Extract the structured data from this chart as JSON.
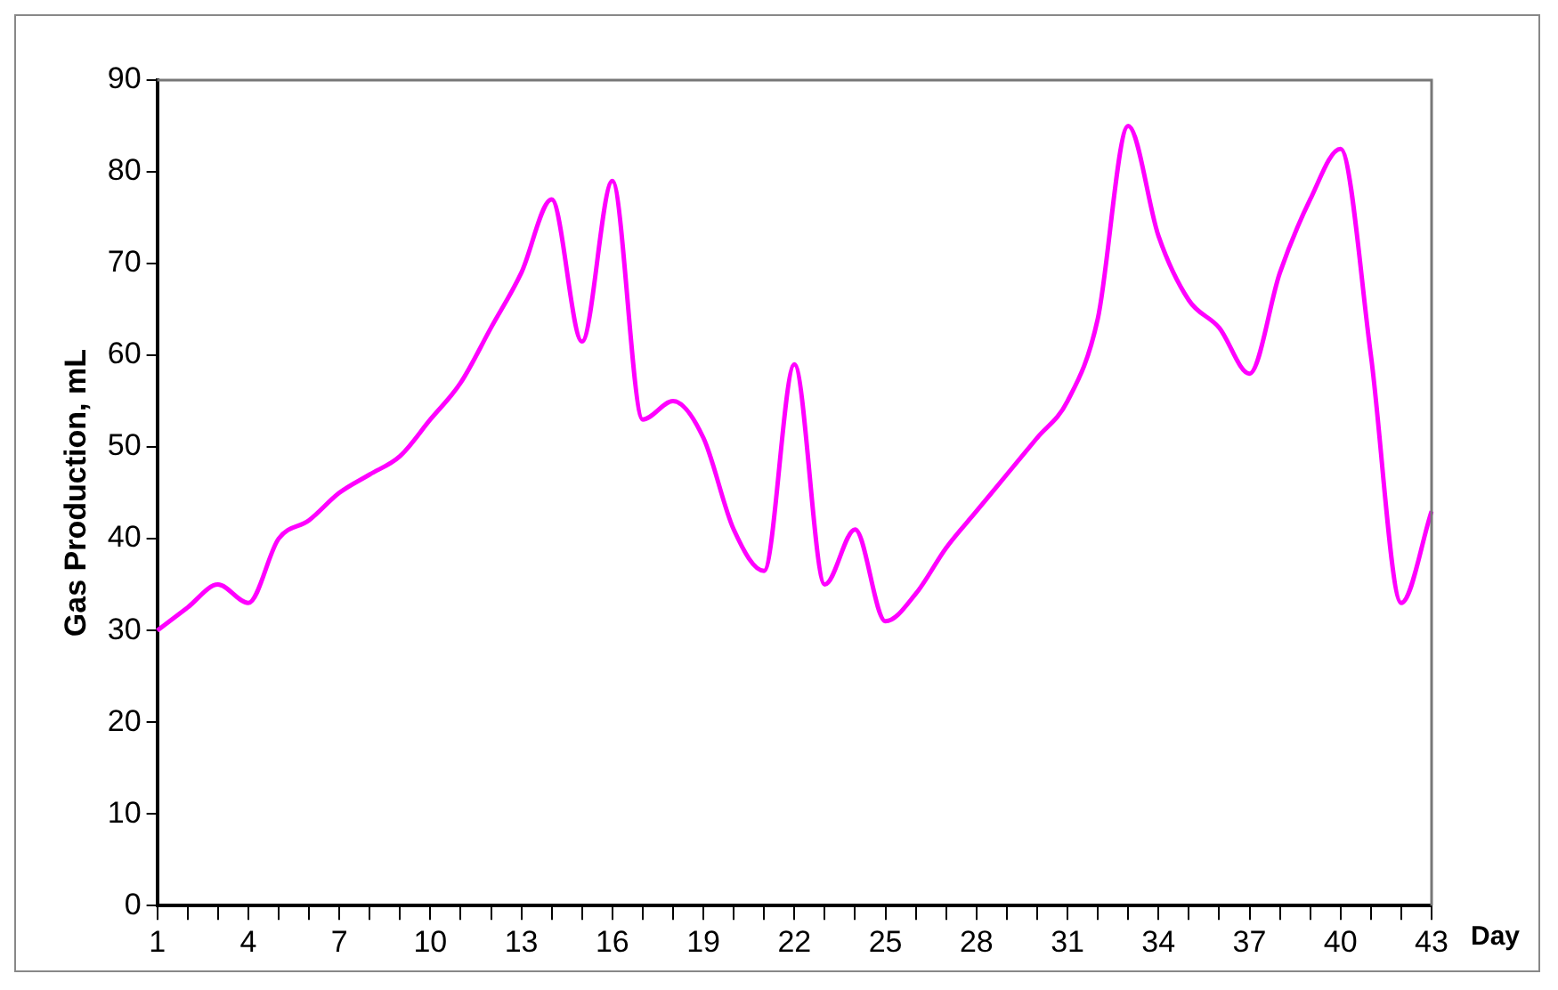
{
  "chart_data": {
    "type": "line",
    "xlabel": "Day",
    "ylabel": "Gas Production, mL",
    "categories": [
      "1",
      null,
      null,
      "4",
      null,
      null,
      "7",
      null,
      null,
      "10",
      null,
      null,
      "13",
      null,
      null,
      "16",
      null,
      null,
      "19",
      null,
      null,
      "22",
      null,
      null,
      "25",
      null,
      null,
      "28",
      null,
      null,
      "31",
      null,
      null,
      "34",
      null,
      null,
      "37",
      null,
      null,
      "40",
      null,
      null,
      "43"
    ],
    "series": [
      {
        "color": "#ff00ff",
        "values": [
          30,
          32.5,
          35,
          33,
          40,
          42,
          45,
          47,
          49,
          53,
          57,
          63,
          69,
          77,
          61.5,
          79,
          53,
          55,
          51,
          41,
          36.5,
          59,
          35,
          41,
          31,
          34,
          39,
          43,
          47,
          51,
          55,
          64,
          85,
          73,
          66,
          63,
          58,
          69,
          77,
          82.5,
          60,
          33,
          43
        ]
      }
    ],
    "ylim": [
      0,
      90
    ],
    "yticks": [
      0,
      10,
      20,
      30,
      40,
      50,
      60,
      70,
      80,
      90
    ],
    "grid": false,
    "legend": false,
    "marker": "none",
    "line_style": "solid"
  }
}
